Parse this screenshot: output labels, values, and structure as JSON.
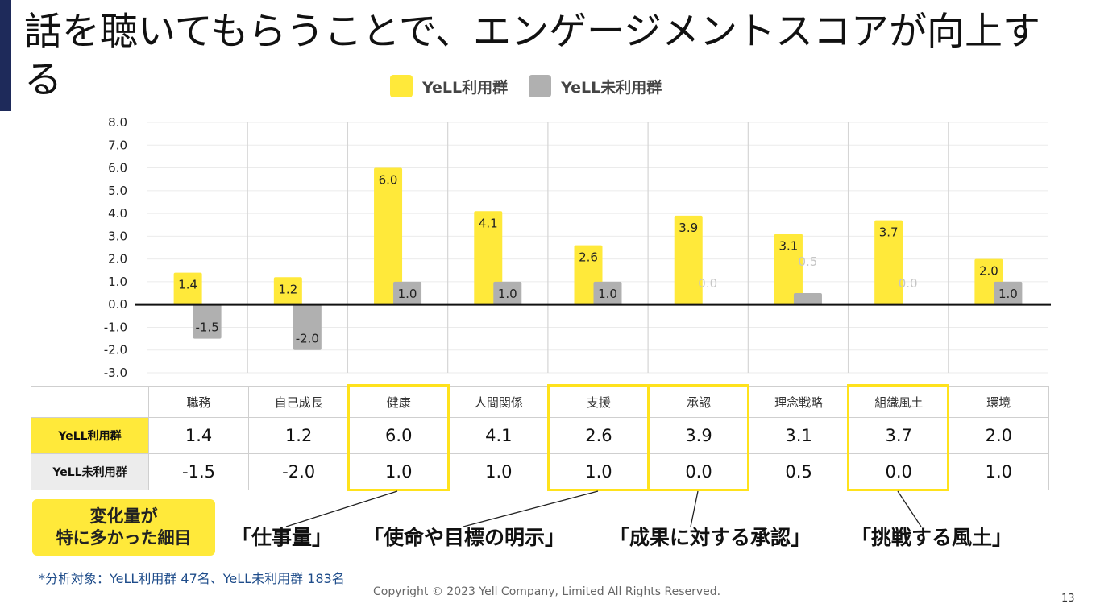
{
  "title": "話を聴いてもらうことで、エンゲージメントスコアが向上する",
  "colors": {
    "yell": "#ffe93a",
    "non_yell": "#b0b0b0",
    "highlight": "#ffe21c",
    "accent": "#1e2a5a"
  },
  "legend": {
    "yell": "YeLL利用群",
    "non_yell": "YeLL未利用群"
  },
  "chart_data": {
    "type": "bar",
    "categories": [
      "職務",
      "自己成長",
      "健康",
      "人間関係",
      "支援",
      "承認",
      "理念戦略",
      "組織風土",
      "環境"
    ],
    "series": [
      {
        "name": "YeLL利用群",
        "values": [
          1.4,
          1.2,
          6.0,
          4.1,
          2.6,
          3.9,
          3.1,
          3.7,
          2.0
        ]
      },
      {
        "name": "YeLL未利用群",
        "values": [
          -1.5,
          -2.0,
          1.0,
          1.0,
          1.0,
          0.0,
          0.5,
          0.0,
          1.0
        ]
      }
    ],
    "yticks": [
      "8.0",
      "7.0",
      "6.0",
      "5.0",
      "4.0",
      "3.0",
      "2.0",
      "1.0",
      "0.0",
      "-1.0",
      "-2.0",
      "-3.0"
    ],
    "ylim": [
      -3,
      8
    ],
    "legend_position": "top-center",
    "grid": true
  },
  "table": {
    "rows": [
      {
        "label": "YeLL利用群",
        "values": [
          "1.4",
          "1.2",
          "6.0",
          "4.1",
          "2.6",
          "3.9",
          "3.1",
          "3.7",
          "2.0"
        ]
      },
      {
        "label": "YeLL未利用群",
        "values": [
          "-1.5",
          "-2.0",
          "1.0",
          "1.0",
          "1.0",
          "0.0",
          "0.5",
          "0.0",
          "1.0"
        ]
      }
    ]
  },
  "callout": {
    "label": "変化量が\n特に多かった細目",
    "items": [
      "「仕事量」",
      "「使命や目標の明示」",
      "「成果に対する承認」",
      "「挑戦する風土」"
    ]
  },
  "footnote": "*分析対象：YeLL利用群 47名、YeLL未利用群 183名",
  "copyright": "Copyright © 2023 Yell Company, Limited All Rights Reserved.",
  "page_number": "13"
}
